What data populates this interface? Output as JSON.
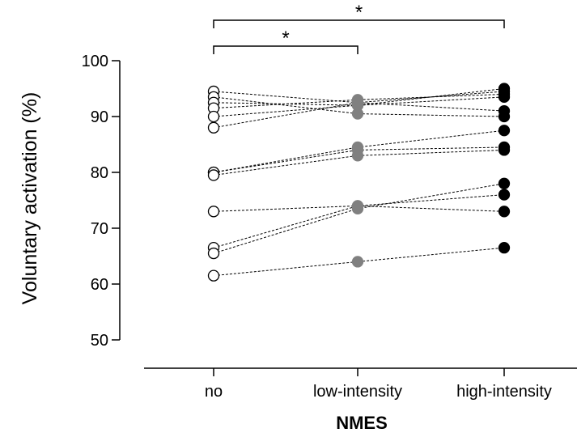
{
  "chart_data": {
    "type": "scatter",
    "xlabel": "NMES",
    "ylabel": "Voluntary activation (%)",
    "categories": [
      "no",
      "low-intensity",
      "high-intensity"
    ],
    "ylim": [
      50,
      100
    ],
    "yticks": [
      "50",
      "60",
      "70",
      "80",
      "90",
      "100"
    ],
    "grid": false,
    "marker_colors": {
      "no": "#ffffff",
      "low-intensity": "#808080",
      "high-intensity": "#000000"
    },
    "subjects": [
      {
        "values": [
          94.5,
          92.5,
          91.0
        ]
      },
      {
        "values": [
          93.5,
          90.5,
          90.0
        ]
      },
      {
        "values": [
          92.5,
          92.0,
          95.0
        ]
      },
      {
        "values": [
          91.5,
          93.0,
          94.0
        ]
      },
      {
        "values": [
          90.0,
          92.0,
          93.5
        ]
      },
      {
        "values": [
          88.0,
          92.5,
          94.5
        ]
      },
      {
        "values": [
          80.0,
          84.5,
          87.5
        ]
      },
      {
        "values": [
          80.0,
          84.0,
          84.5
        ]
      },
      {
        "values": [
          79.5,
          83.0,
          84.0
        ]
      },
      {
        "values": [
          73.0,
          74.0,
          73.0
        ]
      },
      {
        "values": [
          66.5,
          74.0,
          76.0
        ]
      },
      {
        "values": [
          65.5,
          73.5,
          78.0
        ]
      },
      {
        "values": [
          61.5,
          64.0,
          66.5
        ]
      }
    ],
    "significance": [
      {
        "from": "no",
        "to": "low-intensity",
        "label": "*"
      },
      {
        "from": "no",
        "to": "high-intensity",
        "label": "*"
      }
    ]
  }
}
